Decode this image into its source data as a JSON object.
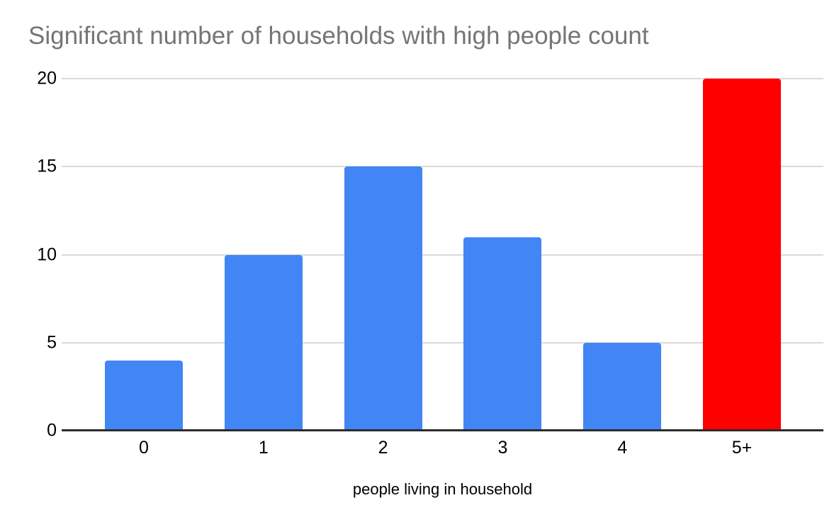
{
  "chart_data": {
    "type": "bar",
    "title": "Significant number of households with high people count",
    "title_color": "#757575",
    "categories": [
      "0",
      "1",
      "2",
      "3",
      "4",
      "5+"
    ],
    "values": [
      4,
      10,
      15,
      11,
      5,
      20
    ],
    "bar_colors": [
      "#4285F4",
      "#4285F4",
      "#4285F4",
      "#4285F4",
      "#4285F4",
      "#FF0000"
    ],
    "xlabel": "people living in household",
    "ylabel": "",
    "ylim": [
      0,
      20
    ],
    "yticks": [
      0,
      5,
      10,
      15,
      20
    ],
    "grid": true,
    "gridline_color": "#DADADA",
    "axis_line_color": "#2B2B2B",
    "tick_label_color": "#000000",
    "legend": "none"
  }
}
